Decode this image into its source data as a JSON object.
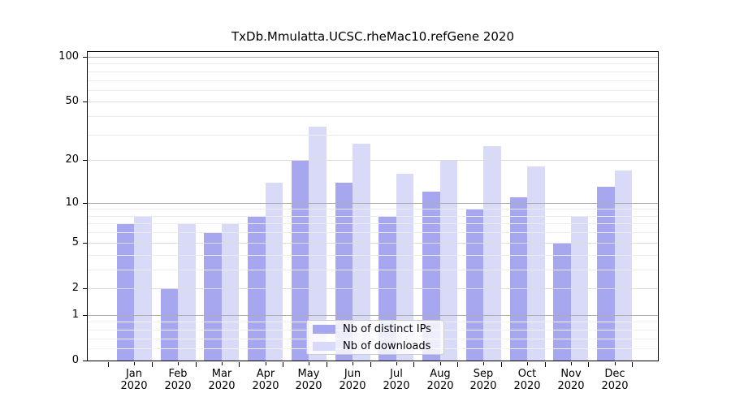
{
  "chart_data": {
    "type": "bar",
    "title": "TxDb.Mmulatta.UCSC.rheMac10.refGene 2020",
    "year": "2020",
    "categories": [
      "Jan",
      "Feb",
      "Mar",
      "Apr",
      "May",
      "Jun",
      "Jul",
      "Aug",
      "Sep",
      "Oct",
      "Nov",
      "Dec"
    ],
    "series": [
      {
        "name": "Nb of distinct IPs",
        "color": "#a7a7f0",
        "values": [
          7,
          2,
          6,
          8,
          20,
          14,
          8,
          12,
          9,
          11,
          5,
          13
        ]
      },
      {
        "name": "Nb of downloads",
        "color": "#d9d9f8",
        "values": [
          8,
          7,
          7,
          14,
          34,
          26,
          16,
          20,
          25,
          18,
          8,
          17
        ]
      }
    ],
    "yscale": "log1p",
    "yticks": [
      0,
      1,
      2,
      5,
      10,
      20,
      50,
      100
    ],
    "ylim": [
      0,
      110
    ],
    "xlabel": "",
    "ylabel": "",
    "grid": true,
    "legend_position": "lower center",
    "colors": {
      "frame": "#000000",
      "grid_major": "#adadad",
      "grid_mid": "#dcdcdc",
      "grid_minor": "#ebebeb",
      "grid_faint": "#f2f2f2",
      "legend_border": "#cccccc"
    }
  }
}
